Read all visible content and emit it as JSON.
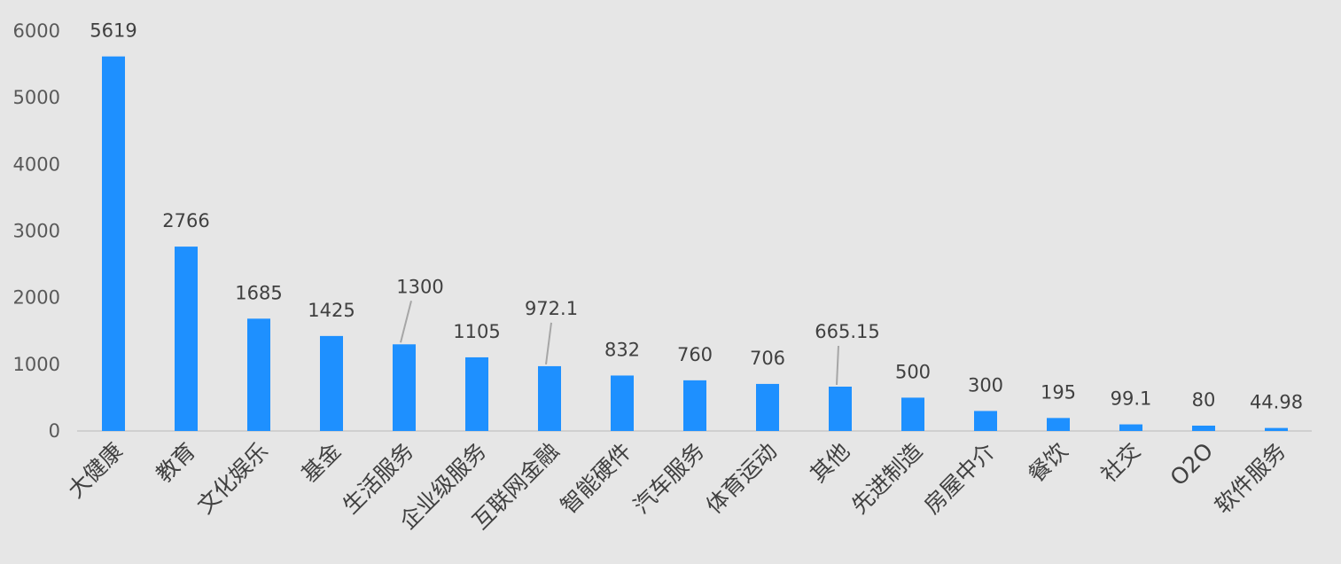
{
  "chart_data": {
    "type": "bar",
    "categories": [
      "大健康",
      "教育",
      "文化娱乐",
      "基金",
      "生活服务",
      "企业级服务",
      "互联网金融",
      "智能硬件",
      "汽车服务",
      "体育运动",
      "其他",
      "先进制造",
      "房屋中介",
      "餐饮",
      "社交",
      "O2O",
      "软件服务"
    ],
    "values": [
      5619,
      2766,
      1685,
      1425,
      1300,
      1105,
      972.1,
      832,
      760,
      706,
      665.15,
      500,
      300,
      195,
      99.1,
      80,
      44.98
    ],
    "data_labels": [
      "5619",
      "2766",
      "1685",
      "1425",
      "1300",
      "1105",
      "972.1",
      "832",
      "760",
      "706",
      "665.15",
      "500",
      "300",
      "195",
      "99.1",
      "80",
      "44.98"
    ],
    "y_ticks": [
      "0",
      "1000",
      "2000",
      "3000",
      "4000",
      "5000",
      "6000"
    ],
    "ylim": [
      0,
      6000
    ],
    "grid": false,
    "legend": "none",
    "colors": {
      "bar": "#1e90ff",
      "background": "#e6e6e6"
    }
  }
}
